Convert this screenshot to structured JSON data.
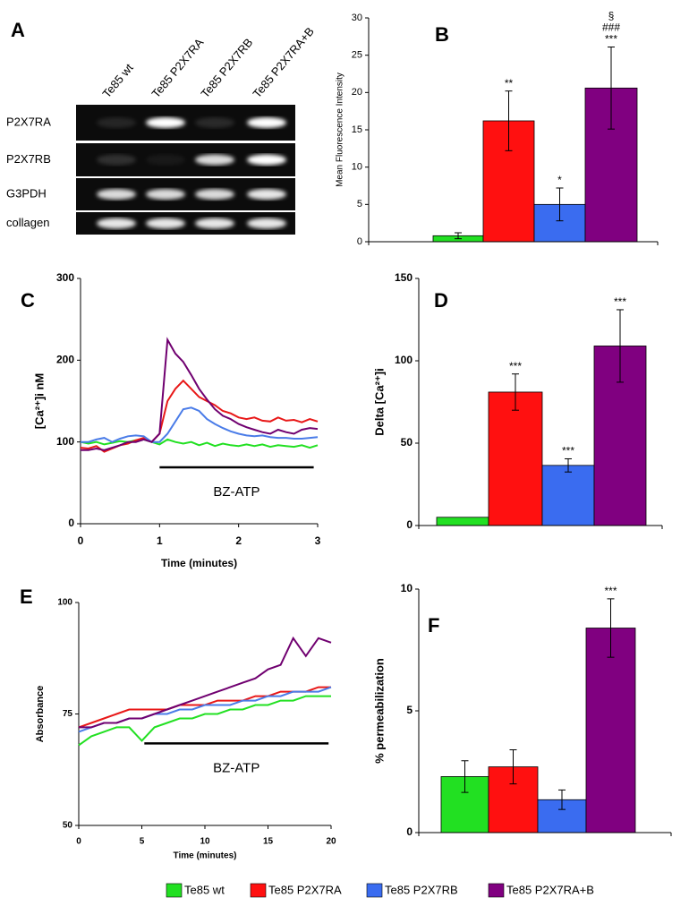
{
  "gel": {
    "label": "A",
    "lanes": [
      "Te85 wt",
      "Te85 P2X7RA",
      "Te85 P2X7RB",
      "Te85 P2X7RA+B"
    ],
    "rows": [
      {
        "label": "P2X7RA",
        "bands": [
          0.1,
          1,
          0.12,
          1
        ]
      },
      {
        "label": "P2X7RB",
        "bands": [
          0.15,
          0.05,
          0.85,
          1
        ]
      },
      {
        "label": "G3PDH",
        "bands": [
          0.85,
          0.85,
          0.85,
          0.9
        ]
      },
      {
        "label": "collagen",
        "bands": [
          0.9,
          0.9,
          0.9,
          0.9
        ]
      }
    ]
  },
  "chart_data": [
    {
      "label": "B",
      "type": "bar",
      "y_label": "Mean Fluorescence Intensity",
      "categories": [
        null,
        null,
        null,
        null
      ],
      "colors": [
        "#22e022",
        "#ff1010",
        "#3a6cf0",
        "#800080"
      ],
      "values": [
        0.8,
        16.2,
        5,
        20.6
      ],
      "errors": [
        0.4,
        4,
        2.2,
        5.5
      ],
      "annotations": [
        [],
        [
          "**"
        ],
        [
          "*"
        ],
        [
          "§",
          "###",
          "***"
        ]
      ],
      "ylim": [
        0,
        30
      ],
      "yticks": [
        0,
        5,
        10,
        15,
        20,
        25,
        30
      ]
    },
    {
      "label": "C",
      "type": "line",
      "y_label": "[Ca²⁺]i  nM",
      "x_label": "Time (minutes)",
      "x": [
        0,
        0.1,
        0.2,
        0.3,
        0.4,
        0.5,
        0.6,
        0.7,
        0.8,
        0.9,
        1,
        1.1,
        1.2,
        1.3,
        1.4,
        1.5,
        1.6,
        1.7,
        1.8,
        1.9,
        2,
        2.1,
        2.2,
        2.3,
        2.4,
        2.5,
        2.6,
        2.7,
        2.8,
        2.9,
        3
      ],
      "series": [
        {
          "name": "Te85 wt",
          "color": "#22e022",
          "values": [
            100,
            98,
            100,
            97,
            99,
            101,
            100,
            102,
            103,
            100,
            97,
            103,
            100,
            98,
            100,
            96,
            99,
            95,
            98,
            96,
            95,
            97,
            95,
            97,
            94,
            96,
            95,
            94,
            96,
            93,
            96
          ]
        },
        {
          "name": "Te85 P2X7RA",
          "color": "#e81818",
          "values": [
            93,
            92,
            95,
            88,
            92,
            96,
            98,
            102,
            105,
            100,
            110,
            150,
            165,
            175,
            165,
            155,
            150,
            145,
            138,
            135,
            130,
            128,
            130,
            126,
            125,
            130,
            126,
            127,
            124,
            128,
            125
          ]
        },
        {
          "name": "Te85 P2X7RB",
          "color": "#4a7ce8",
          "values": [
            100,
            100,
            103,
            105,
            100,
            104,
            107,
            108,
            107,
            100,
            100,
            110,
            125,
            140,
            142,
            138,
            128,
            122,
            117,
            113,
            110,
            108,
            107,
            108,
            106,
            105,
            105,
            104,
            104,
            105,
            106
          ]
        },
        {
          "name": "Te85 P2X7RA+B",
          "color": "#700070",
          "values": [
            90,
            90,
            92,
            90,
            93,
            96,
            100,
            100,
            103,
            100,
            110,
            225,
            208,
            198,
            182,
            165,
            152,
            140,
            132,
            128,
            122,
            118,
            115,
            112,
            110,
            115,
            112,
            110,
            115,
            117,
            116
          ]
        }
      ],
      "stimulus": {
        "label": "BZ-ATP",
        "x": [
          1,
          2.95
        ],
        "y": 69
      },
      "xlim": [
        0,
        3
      ],
      "xticks": [
        0,
        1,
        2,
        3
      ],
      "ylim": [
        0,
        300
      ],
      "yticks": [
        0,
        100,
        200,
        300
      ]
    },
    {
      "label": "D",
      "type": "bar",
      "y_label": "Delta [Ca²⁺]i",
      "categories": [
        null,
        null,
        null,
        null
      ],
      "colors": [
        "#22e022",
        "#ff1010",
        "#3a6cf0",
        "#800080"
      ],
      "values": [
        5,
        81,
        36.5,
        109
      ],
      "errors": [
        null,
        11,
        4,
        22
      ],
      "annotations": [
        [],
        [
          "***"
        ],
        [
          "***"
        ],
        [
          "***"
        ]
      ],
      "ylim": [
        0,
        150
      ],
      "yticks": [
        0,
        50,
        100,
        150
      ]
    },
    {
      "label": "E",
      "type": "line",
      "y_label": "Absorbance",
      "x_label": "Time (minutes)",
      "x": [
        0,
        1,
        2,
        3,
        4,
        5,
        6,
        7,
        8,
        9,
        10,
        11,
        12,
        13,
        14,
        15,
        16,
        17,
        18,
        19,
        20
      ],
      "series": [
        {
          "name": "Te85 wt",
          "color": "#22e022",
          "values": [
            68,
            70,
            71,
            72,
            72,
            69,
            72,
            73,
            74,
            74,
            75,
            75,
            76,
            76,
            77,
            77,
            78,
            78,
            79,
            79,
            79
          ]
        },
        {
          "name": "Te85 P2X7RA",
          "color": "#e81818",
          "values": [
            72,
            73,
            74,
            75,
            76,
            76,
            76,
            76,
            77,
            77,
            77,
            78,
            78,
            78,
            79,
            79,
            80,
            80,
            80,
            81,
            81
          ]
        },
        {
          "name": "Te85 P2X7RB",
          "color": "#4a7ce8",
          "values": [
            71,
            72,
            73,
            73,
            74,
            74,
            75,
            75,
            76,
            76,
            77,
            77,
            77,
            78,
            78,
            79,
            79,
            80,
            80,
            80,
            81
          ]
        },
        {
          "name": "Te85 P2X7RA+B",
          "color": "#700070",
          "values": [
            72,
            72,
            73,
            73,
            74,
            74,
            75,
            76,
            77,
            78,
            79,
            80,
            81,
            82,
            83,
            85,
            86,
            92,
            88,
            92,
            91
          ]
        }
      ],
      "stimulus": {
        "label": "BZ-ATP",
        "x": [
          5.2,
          19.8
        ],
        "y": 68.4
      },
      "xlim": [
        0,
        20
      ],
      "xticks": [
        0,
        5,
        10,
        15,
        20
      ],
      "ylim": [
        50,
        100
      ],
      "yticks": [
        50,
        75,
        100
      ]
    },
    {
      "label": "F",
      "type": "bar",
      "y_label": "% permeabilization",
      "categories": [
        null,
        null,
        null,
        null
      ],
      "colors": [
        "#22e022",
        "#ff1010",
        "#3a6cf0",
        "#800080"
      ],
      "values": [
        2.3,
        2.7,
        1.35,
        8.4
      ],
      "errors": [
        0.65,
        0.7,
        0.4,
        1.2
      ],
      "annotations": [
        [],
        [],
        [],
        [
          "***"
        ]
      ],
      "ylim": [
        0,
        10
      ],
      "yticks": [
        0,
        5,
        10
      ]
    }
  ],
  "legend": [
    {
      "name": "Te85 wt",
      "color": "#22e022"
    },
    {
      "name": "Te85 P2X7RA",
      "color": "#ff1010"
    },
    {
      "name": "Te85 P2X7RB",
      "color": "#3a6cf0"
    },
    {
      "name": "Te85 P2X7RA+B",
      "color": "#800080"
    }
  ]
}
